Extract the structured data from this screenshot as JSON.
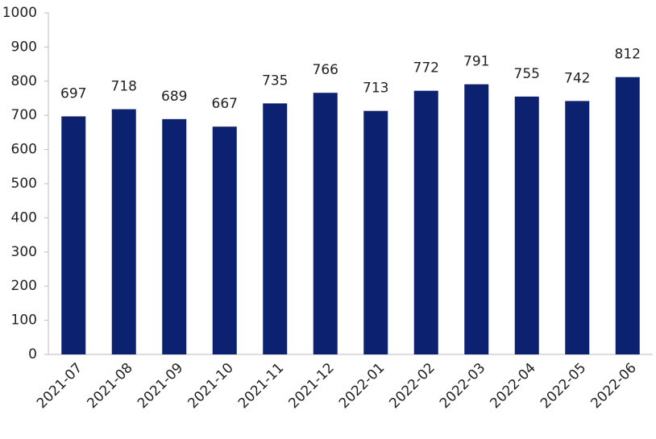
{
  "chart_data": {
    "type": "bar",
    "categories": [
      "2021-07",
      "2021-08",
      "2021-09",
      "2021-10",
      "2021-11",
      "2021-12",
      "2022-01",
      "2022-02",
      "2022-03",
      "2022-04",
      "2022-05",
      "2022-06"
    ],
    "values": [
      697,
      718,
      689,
      667,
      735,
      766,
      713,
      772,
      791,
      755,
      742,
      812
    ],
    "color": "#0c2270",
    "ylim": [
      0,
      1000
    ],
    "yticks": [
      0,
      100,
      200,
      300,
      400,
      500,
      600,
      700,
      800,
      900,
      1000
    ],
    "grid": false
  }
}
